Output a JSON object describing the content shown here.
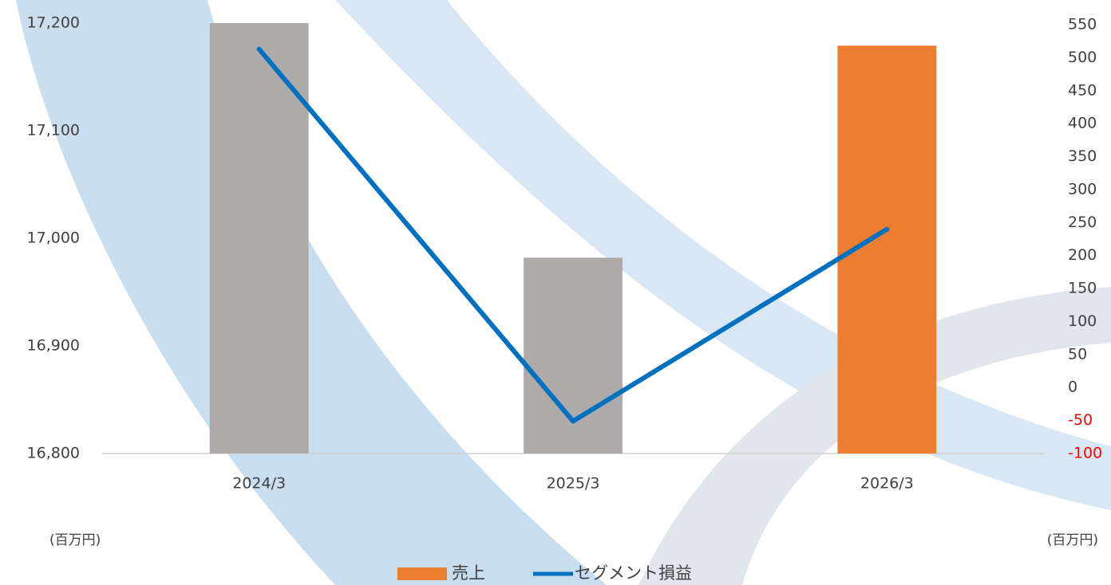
{
  "chart_data": {
    "type": "bar_line",
    "categories": [
      "2024/3",
      "2025/3",
      "2026/3"
    ],
    "series": [
      {
        "name": "売上",
        "type": "bar",
        "color": "#ed7d31",
        "colors": [
          "#aeaaaa",
          "#aeaaaa",
          "#ed7d31"
        ],
        "values": [
          17200,
          16982,
          17179
        ]
      },
      {
        "name": "セグメント損益",
        "type": "line",
        "axis": "y2",
        "color": "#0070c0",
        "values": [
          513,
          -51,
          240
        ]
      }
    ],
    "ylim": [
      16800,
      17200
    ],
    "yticks": [
      {
        "value": 16800,
        "label": "16,800"
      },
      {
        "value": 16900,
        "label": "16,900"
      },
      {
        "value": 17000,
        "label": "17,000"
      },
      {
        "value": 17100,
        "label": "17,100"
      },
      {
        "value": 17200,
        "label": "17,200"
      }
    ],
    "y2lim": [
      -100,
      550
    ],
    "y2ticks": [
      -100,
      -50,
      0,
      50,
      100,
      150,
      200,
      250,
      300,
      350,
      400,
      450,
      500,
      550
    ],
    "negative_tick_color": "#ff0000",
    "y_unit_label": "(百万円)",
    "y2_unit_label": "(百万円)",
    "legend": "bottom"
  }
}
